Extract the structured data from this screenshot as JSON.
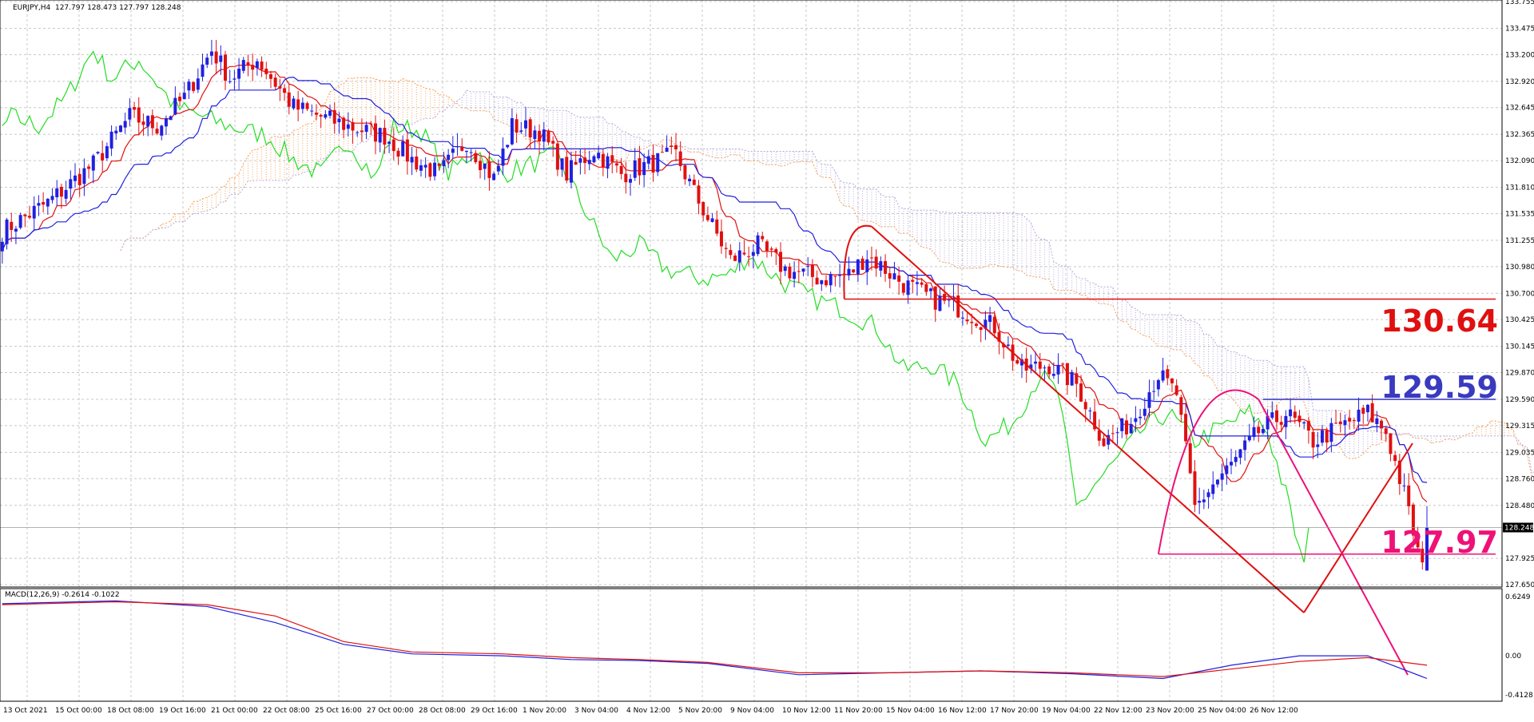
{
  "header": {
    "symbol_line": "EURJPY,H4  127.797 128.473 127.797 128.248",
    "macd_line": "MACD(12,26,9) -0.2614 -0.1022"
  },
  "colors": {
    "bull": "#2020e0",
    "bear": "#e01010",
    "tenkan": "#e01010",
    "kijun": "#2020e0",
    "chikou": "#22dd22",
    "kumo_bull": "#f4a460",
    "kumo_bear": "#b8a8dc",
    "level_red": "#e01010",
    "level_blue": "#3030c0",
    "level_pink": "#ee1177",
    "grid": "#c8c8c8"
  },
  "levels": [
    {
      "value": 130.64,
      "label": "130.64",
      "color": "#e01010"
    },
    {
      "value": 129.59,
      "label": "129.59",
      "color": "#3a3ac0"
    },
    {
      "value": 127.97,
      "label": "127.97",
      "color": "#ee1177"
    }
  ],
  "current_price": "128.248",
  "chart_data": [
    {
      "type": "candlestick",
      "title": "EURJPY,H4",
      "ylim": [
        127.65,
        133.755
      ],
      "y_ticks": [
        "133.755",
        "133.475",
        "133.200",
        "132.920",
        "132.645",
        "132.365",
        "132.090",
        "131.810",
        "131.535",
        "131.255",
        "130.980",
        "130.700",
        "130.425",
        "130.145",
        "129.870",
        "129.590",
        "129.315",
        "129.035",
        "128.760",
        "128.480",
        "127.925",
        "127.650"
      ],
      "x_ticks": [
        "13 Oct 2021",
        "15 Oct 00:00",
        "18 Oct 08:00",
        "19 Oct 16:00",
        "21 Oct 00:00",
        "22 Oct 08:00",
        "25 Oct 16:00",
        "27 Oct 00:00",
        "28 Oct 08:00",
        "29 Oct 16:00",
        "1 Nov 20:00",
        "3 Nov 04:00",
        "4 Nov 12:00",
        "5 Nov 20:00",
        "9 Nov 04:00",
        "10 Nov 12:00",
        "11 Nov 20:00",
        "15 Nov 04:00",
        "16 Nov 12:00",
        "17 Nov 20:00",
        "19 Nov 04:00",
        "22 Nov 12:00",
        "23 Nov 20:00",
        "25 Nov 04:00",
        "26 Nov 12:00"
      ],
      "last_ohlc": {
        "open": 127.797,
        "high": 128.473,
        "low": 127.797,
        "close": 128.248
      },
      "price_path": [
        [
          0,
          131.35
        ],
        [
          10,
          131.65
        ],
        [
          20,
          132.05
        ],
        [
          28,
          132.55
        ],
        [
          34,
          132.45
        ],
        [
          40,
          132.75
        ],
        [
          46,
          133.25
        ],
        [
          50,
          132.95
        ],
        [
          56,
          133.15
        ],
        [
          64,
          132.65
        ],
        [
          70,
          132.55
        ],
        [
          76,
          132.45
        ],
        [
          84,
          132.35
        ],
        [
          90,
          132.1
        ],
        [
          96,
          131.95
        ],
        [
          102,
          132.3
        ],
        [
          108,
          131.9
        ],
        [
          112,
          132.45
        ],
        [
          118,
          132.4
        ],
        [
          124,
          131.95
        ],
        [
          130,
          132.2
        ],
        [
          136,
          131.95
        ],
        [
          142,
          132.05
        ],
        [
          148,
          132.15
        ],
        [
          152,
          131.75
        ],
        [
          160,
          131.05
        ],
        [
          166,
          131.2
        ],
        [
          172,
          130.95
        ],
        [
          180,
          130.85
        ],
        [
          186,
          130.9
        ],
        [
          190,
          131.1
        ],
        [
          198,
          130.8
        ],
        [
          204,
          130.65
        ],
        [
          210,
          130.55
        ],
        [
          218,
          130.35
        ],
        [
          224,
          129.9
        ],
        [
          230,
          129.95
        ],
        [
          236,
          129.75
        ],
        [
          242,
          129.15
        ],
        [
          248,
          129.35
        ],
        [
          254,
          129.85
        ],
        [
          258,
          129.65
        ],
        [
          262,
          128.45
        ],
        [
          266,
          128.7
        ],
        [
          270,
          128.9
        ],
        [
          276,
          129.25
        ],
        [
          282,
          129.45
        ],
        [
          288,
          129.15
        ],
        [
          294,
          129.3
        ],
        [
          300,
          129.45
        ],
        [
          304,
          129.25
        ],
        [
          308,
          128.6
        ],
        [
          312,
          127.8
        ],
        [
          313,
          128.25
        ]
      ]
    },
    {
      "type": "line",
      "title": "MACD(12,26,9)",
      "ylim": [
        -0.4128,
        0.6249
      ],
      "y_ticks": [
        "0.6249",
        "0.00",
        "-0.4128"
      ],
      "series": [
        {
          "values": [
            [
              0,
              0.55
            ],
            [
              25,
              0.58
            ],
            [
              45,
              0.52
            ],
            [
              60,
              0.35
            ],
            [
              75,
              0.12
            ],
            [
              90,
              0.02
            ],
            [
              110,
              0.0
            ],
            [
              125,
              -0.04
            ],
            [
              140,
              -0.05
            ],
            [
              155,
              -0.08
            ],
            [
              175,
              -0.2
            ],
            [
              195,
              -0.18
            ],
            [
              215,
              -0.16
            ],
            [
              235,
              -0.19
            ],
            [
              255,
              -0.24
            ],
            [
              270,
              -0.1
            ],
            [
              285,
              0.0
            ],
            [
              300,
              0.0
            ],
            [
              313,
              -0.24
            ]
          ]
        },
        {
          "values": [
            [
              0,
              0.54
            ],
            [
              25,
              0.57
            ],
            [
              45,
              0.54
            ],
            [
              60,
              0.42
            ],
            [
              75,
              0.15
            ],
            [
              90,
              0.04
            ],
            [
              110,
              0.02
            ],
            [
              125,
              -0.02
            ],
            [
              140,
              -0.04
            ],
            [
              155,
              -0.07
            ],
            [
              175,
              -0.18
            ],
            [
              195,
              -0.18
            ],
            [
              215,
              -0.16
            ],
            [
              235,
              -0.18
            ],
            [
              255,
              -0.22
            ],
            [
              270,
              -0.14
            ],
            [
              285,
              -0.06
            ],
            [
              300,
              -0.02
            ],
            [
              313,
              -0.1
            ]
          ]
        }
      ]
    }
  ]
}
